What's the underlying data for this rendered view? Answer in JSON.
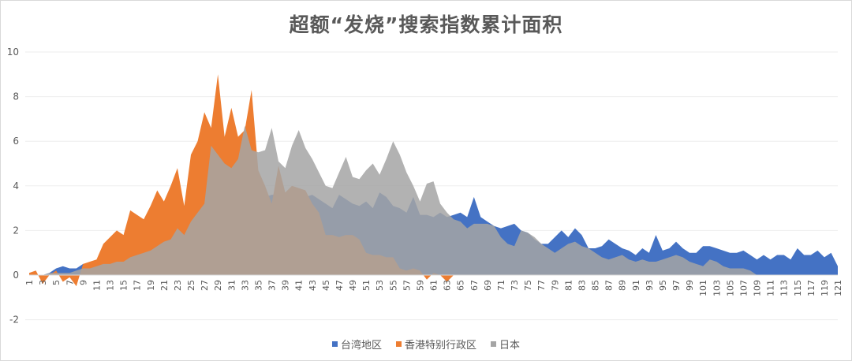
{
  "chart_data": {
    "type": "area",
    "title": "超额“发烧”搜索指数累计面积",
    "xlabel": "",
    "ylabel": "",
    "ylim": [
      -2,
      10
    ],
    "yticks": [
      -2,
      0,
      2,
      4,
      6,
      8,
      10
    ],
    "x_range": [
      1,
      121
    ],
    "xtick_labels": "odd numbers 1..121",
    "grid": true,
    "legend_position": "bottom",
    "series": [
      {
        "name": "台湾地区",
        "color": "#4472C4",
        "values": [
          0.1,
          0.0,
          0.0,
          0.1,
          0.3,
          0.4,
          0.3,
          0.3,
          0.5,
          0.5,
          0.5,
          0.6,
          0.7,
          0.6,
          0.7,
          0.8,
          0.9,
          1.0,
          1.1,
          1.2,
          1.3,
          1.5,
          1.6,
          1.7,
          1.8,
          2.0,
          2.2,
          2.4,
          2.6,
          2.8,
          3.0,
          3.1,
          3.3,
          3.4,
          3.5,
          3.5,
          3.6,
          3.6,
          3.7,
          3.8,
          3.7,
          3.5,
          3.6,
          3.4,
          3.2,
          3.0,
          3.6,
          3.4,
          3.2,
          3.1,
          3.3,
          3.0,
          3.7,
          3.5,
          3.1,
          3.0,
          2.8,
          3.5,
          2.7,
          2.7,
          2.6,
          2.8,
          2.6,
          2.7,
          2.8,
          2.6,
          3.5,
          2.6,
          2.4,
          2.2,
          2.1,
          2.2,
          2.3,
          2.0,
          1.9,
          1.6,
          1.4,
          1.4,
          1.7,
          2.0,
          1.7,
          2.1,
          1.8,
          1.2,
          1.2,
          1.3,
          1.6,
          1.4,
          1.2,
          1.1,
          0.9,
          1.2,
          1.0,
          1.8,
          1.1,
          1.2,
          1.5,
          1.2,
          1.0,
          1.0,
          1.3,
          1.3,
          1.2,
          1.1,
          1.0,
          1.0,
          1.1,
          0.9,
          0.7,
          0.9,
          0.7,
          0.9,
          0.9,
          0.7,
          1.2,
          0.9,
          0.9,
          1.1,
          0.8,
          1.0,
          0.4
        ]
      },
      {
        "name": "香港特别行政区",
        "color": "#ED7D31",
        "values": [
          0.1,
          0.2,
          -0.4,
          0.0,
          0.2,
          -0.3,
          -0.1,
          -0.5,
          0.5,
          0.6,
          0.7,
          1.4,
          1.7,
          2.0,
          1.8,
          2.9,
          2.7,
          2.5,
          3.1,
          3.8,
          3.3,
          4.0,
          4.8,
          3.1,
          5.4,
          6.0,
          7.3,
          6.6,
          9.0,
          6.2,
          7.5,
          6.2,
          6.5,
          8.3,
          4.7,
          4.0,
          3.2,
          4.9,
          3.7,
          4.0,
          3.9,
          3.8,
          3.2,
          2.8,
          1.8,
          1.8,
          1.7,
          1.8,
          1.8,
          1.6,
          1.0,
          0.9,
          0.9,
          0.8,
          0.8,
          0.3,
          0.2,
          0.3,
          0.2,
          -0.2,
          0.1,
          0.0,
          -0.3,
          0.0,
          0.0,
          0.0,
          0.0,
          0.0,
          0.0,
          0.0,
          0.0,
          0.0,
          0.0,
          0.0,
          0.0,
          0.0,
          0.0,
          0.0,
          0.0,
          0.0,
          0.0,
          0.0,
          0.0,
          0.0,
          0.0,
          0.0,
          0.0,
          0.0,
          0.0,
          0.0,
          0.0,
          0.0,
          0.0,
          0.0,
          0.0,
          0.0,
          0.0,
          0.0,
          0.0,
          0.0,
          0.0,
          0.0,
          0.0,
          0.0,
          0.0,
          0.0,
          0.0,
          0.0,
          0.0,
          0.0,
          0.0,
          0.0,
          0.0,
          0.0,
          0.0,
          0.0,
          0.0,
          0.0,
          0.0,
          0.0,
          0.0
        ]
      },
      {
        "name": "日本",
        "color": "#A5A5A5",
        "values": [
          0.0,
          0.0,
          0.0,
          0.1,
          0.1,
          0.1,
          0.1,
          0.2,
          0.3,
          0.3,
          0.4,
          0.5,
          0.5,
          0.6,
          0.6,
          0.8,
          0.9,
          1.0,
          1.1,
          1.3,
          1.5,
          1.6,
          2.1,
          1.8,
          2.4,
          2.8,
          3.2,
          5.8,
          5.4,
          5.0,
          4.8,
          5.2,
          6.7,
          5.6,
          5.5,
          5.6,
          6.6,
          5.1,
          4.8,
          5.8,
          6.5,
          5.7,
          5.2,
          4.6,
          4.0,
          3.9,
          4.6,
          5.3,
          4.4,
          4.3,
          4.7,
          5.0,
          4.5,
          5.2,
          6.0,
          5.4,
          4.6,
          4.0,
          3.3,
          4.1,
          4.2,
          3.2,
          2.8,
          2.5,
          2.4,
          2.1,
          2.3,
          2.3,
          2.3,
          2.2,
          1.7,
          1.4,
          1.3,
          2.0,
          1.9,
          1.7,
          1.4,
          1.2,
          1.0,
          1.2,
          1.4,
          1.5,
          1.3,
          1.2,
          1.0,
          0.8,
          0.7,
          0.8,
          0.9,
          0.7,
          0.6,
          0.7,
          0.6,
          0.6,
          0.7,
          0.8,
          0.9,
          0.8,
          0.6,
          0.5,
          0.4,
          0.7,
          0.6,
          0.4,
          0.3,
          0.3,
          0.3,
          0.2,
          0.0,
          0.0,
          0.0,
          0.0,
          0.0,
          0.0,
          0.0,
          0.0,
          0.0,
          0.0,
          0.0,
          0.0,
          0.0
        ]
      }
    ]
  },
  "legend": {
    "items": [
      "台湾地区",
      "香港特别行政区",
      "日本"
    ]
  }
}
